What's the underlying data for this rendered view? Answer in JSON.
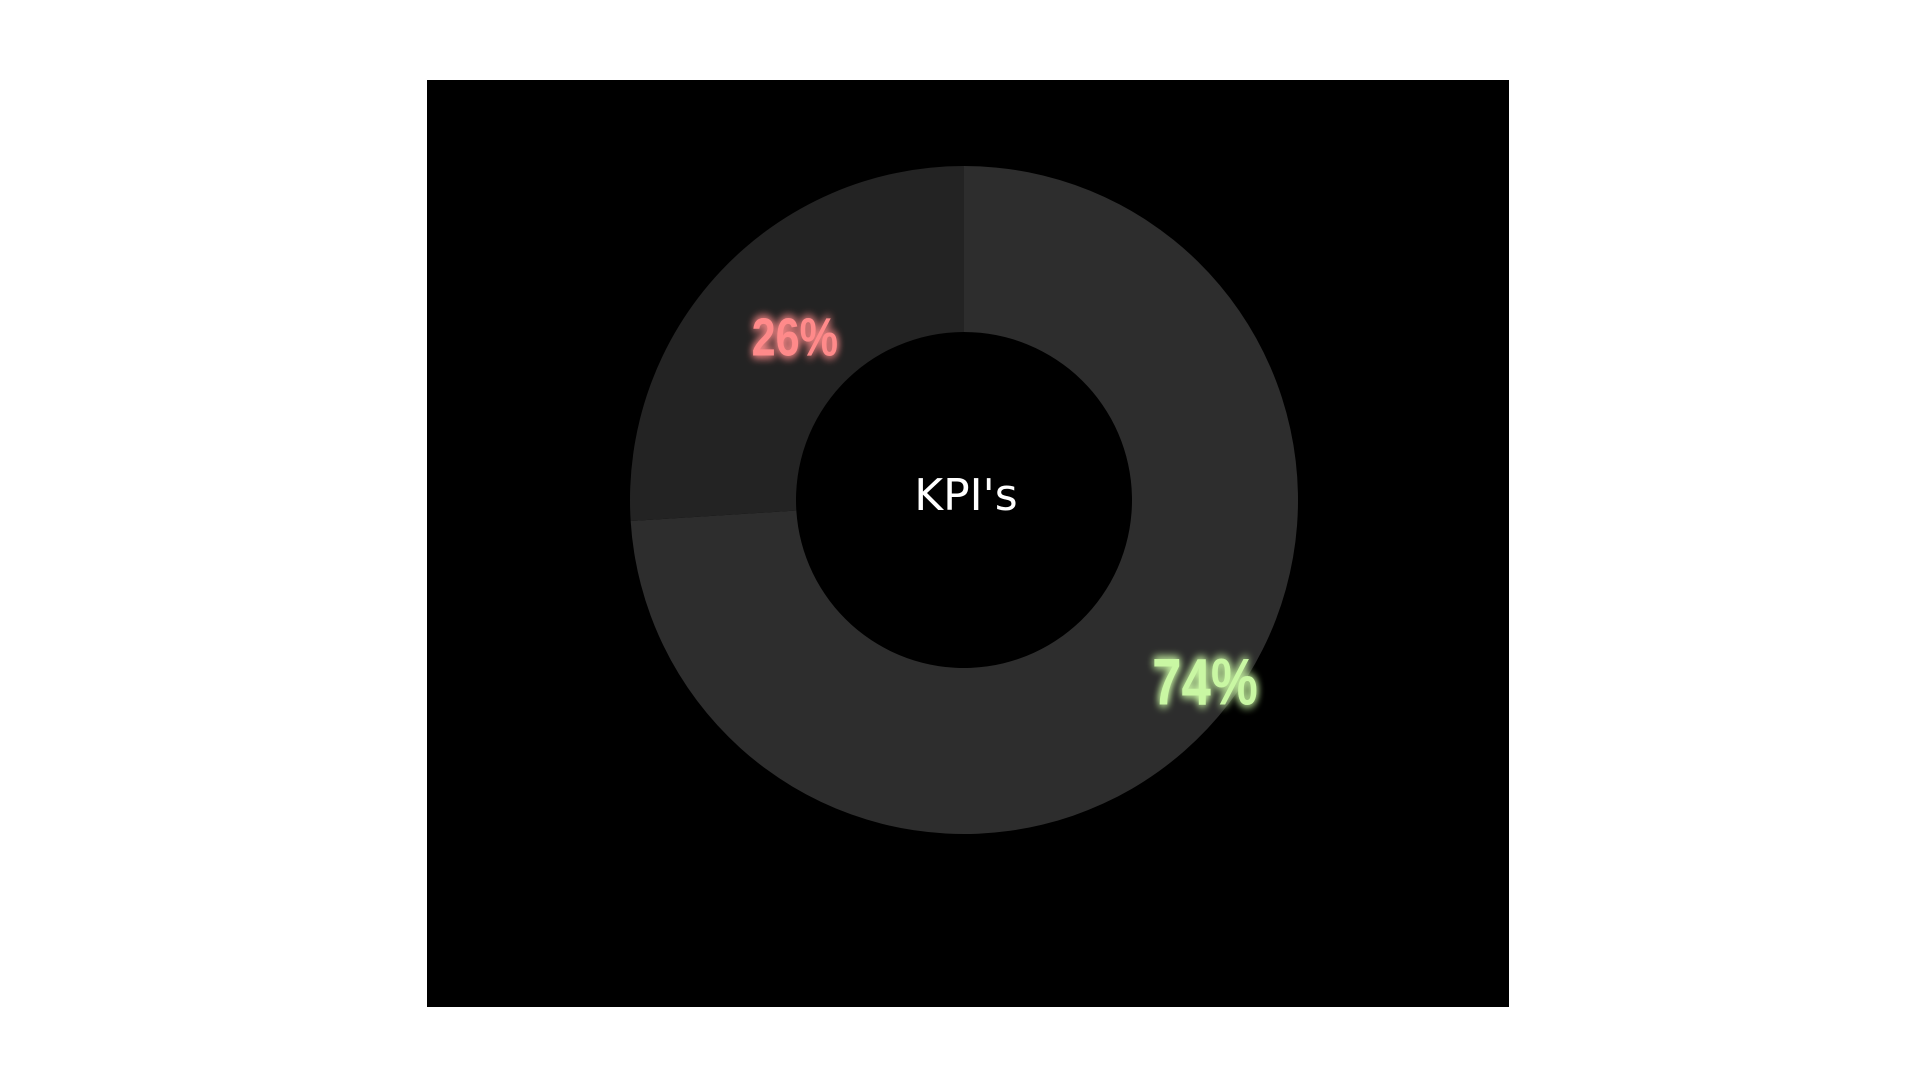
{
  "chart_data": {
    "type": "pie",
    "style": "donut",
    "center_label": "KPI's",
    "slices": [
      {
        "label": "74%",
        "value": 74,
        "color": "#2d2d2d",
        "label_color": "#c9f7a3",
        "glow_color": "#7ed957"
      },
      {
        "label": "26%",
        "value": 26,
        "color": "#232323",
        "label_color": "#ff8a8a",
        "glow_color": "#ff3b3b"
      }
    ],
    "background_color": "#000000"
  }
}
